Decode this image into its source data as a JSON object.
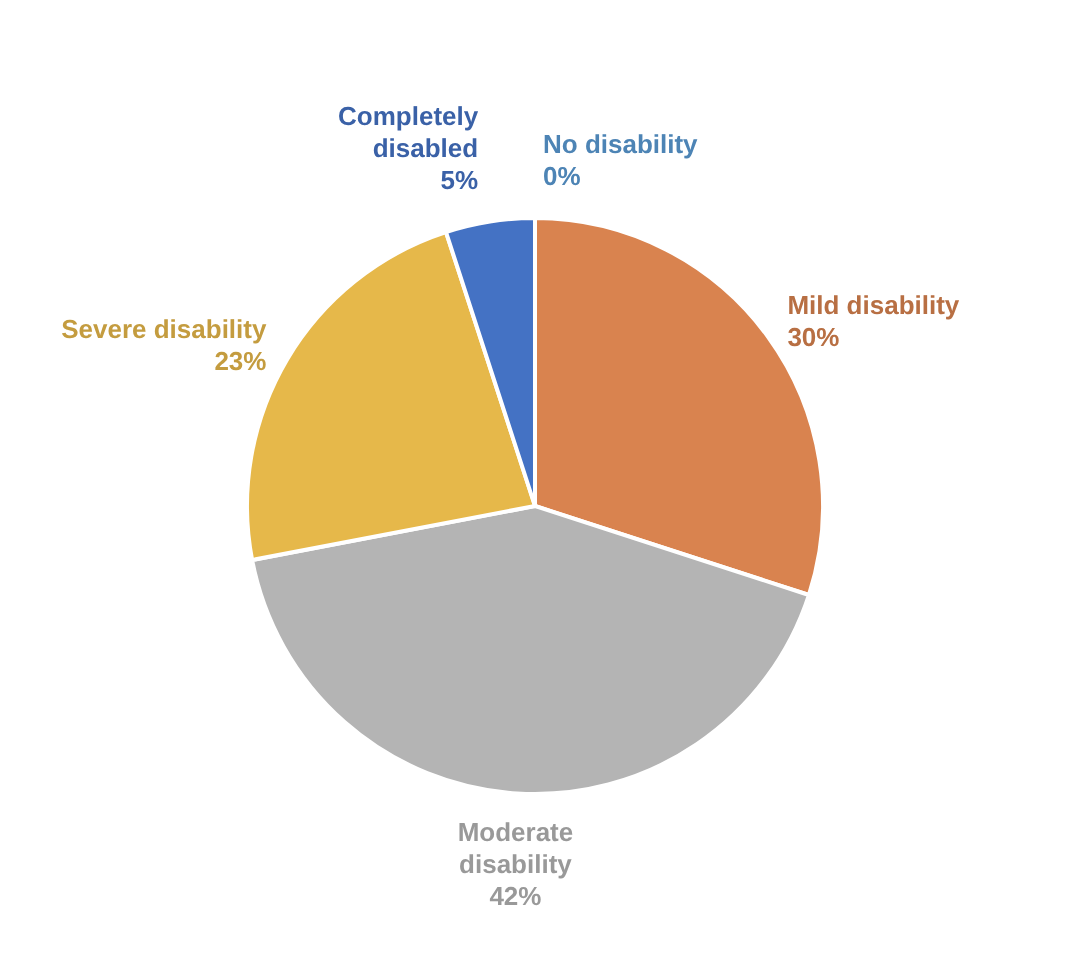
{
  "chart_data": {
    "type": "pie",
    "categories": [
      "No disability",
      "Mild disability",
      "Moderate disability",
      "Severe disability",
      "Completely disabled"
    ],
    "values": [
      0,
      30,
      42,
      23,
      5
    ],
    "value_labels": [
      "0%",
      "30%",
      "42%",
      "23%",
      "5%"
    ],
    "colors": [
      "#5b9bd5",
      "#d9834f",
      "#b4b4b4",
      "#e6b84a",
      "#4472c4"
    ],
    "legend": false
  }
}
